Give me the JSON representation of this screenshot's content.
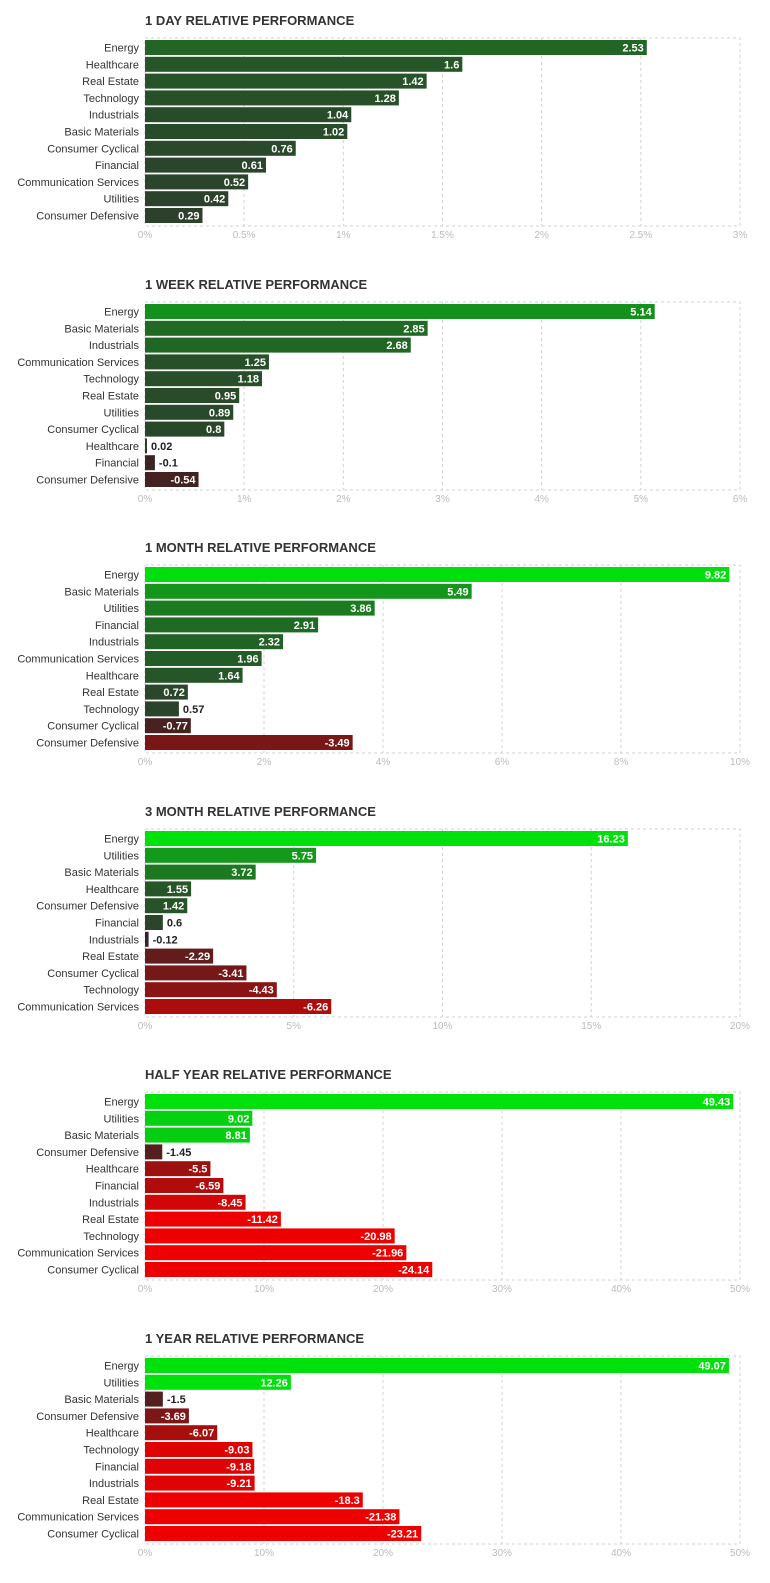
{
  "colors": {
    "title": "#333333",
    "category_label": "#333333",
    "tick_label": "#bbbbbb",
    "gridline": "#d0d0d0",
    "bar_value_text_inside": "#ffffff",
    "bar_value_text_outside": "#222222",
    "positive_bright": "#00e10c",
    "positive_dark": "#2d3b2d",
    "negative_dark": "#3a2424",
    "negative_bright": "#ee0000"
  },
  "chart_data": [
    {
      "type": "bar",
      "orientation": "horizontal",
      "title": "1 DAY RELATIVE PERFORMANCE",
      "categories": [
        "Energy",
        "Healthcare",
        "Real Estate",
        "Technology",
        "Industrials",
        "Basic Materials",
        "Consumer Cyclical",
        "Financial",
        "Communication Services",
        "Utilities",
        "Consumer Defensive"
      ],
      "values": [
        2.53,
        1.6,
        1.42,
        1.28,
        1.04,
        1.02,
        0.76,
        0.61,
        0.52,
        0.42,
        0.29
      ],
      "value_labels": [
        "2.53",
        "1.6",
        "1.42",
        "1.28",
        "1.04",
        "1.02",
        "0.76",
        "0.61",
        "0.52",
        "0.42",
        "0.29"
      ],
      "xlim": [
        0,
        3
      ],
      "ticks": [
        0,
        0.5,
        1,
        1.5,
        2,
        2.5,
        3
      ],
      "tick_labels": [
        "0%",
        "0.5%",
        "1%",
        "1.5%",
        "2%",
        "2.5%",
        "3%"
      ],
      "xlabel": "",
      "ylabel": "",
      "grid": true
    },
    {
      "type": "bar",
      "orientation": "horizontal",
      "title": "1 WEEK RELATIVE PERFORMANCE",
      "categories": [
        "Energy",
        "Basic Materials",
        "Industrials",
        "Communication Services",
        "Technology",
        "Real Estate",
        "Utilities",
        "Consumer Cyclical",
        "Healthcare",
        "Financial",
        "Consumer Defensive"
      ],
      "values": [
        5.14,
        2.85,
        2.68,
        1.25,
        1.18,
        0.95,
        0.89,
        0.8,
        0.02,
        -0.1,
        -0.54
      ],
      "value_labels": [
        "5.14",
        "2.85",
        "2.68",
        "1.25",
        "1.18",
        "0.95",
        "0.89",
        "0.8",
        "0.02",
        "-0.1",
        "-0.54"
      ],
      "xlim": [
        0,
        6
      ],
      "ticks": [
        0,
        1,
        2,
        3,
        4,
        5,
        6
      ],
      "tick_labels": [
        "0%",
        "1%",
        "2%",
        "3%",
        "4%",
        "5%",
        "6%"
      ],
      "xlabel": "",
      "ylabel": "",
      "grid": true
    },
    {
      "type": "bar",
      "orientation": "horizontal",
      "title": "1 MONTH RELATIVE PERFORMANCE",
      "categories": [
        "Energy",
        "Basic Materials",
        "Utilities",
        "Financial",
        "Industrials",
        "Communication Services",
        "Healthcare",
        "Real Estate",
        "Technology",
        "Consumer Cyclical",
        "Consumer Defensive"
      ],
      "values": [
        9.82,
        5.49,
        3.86,
        2.91,
        2.32,
        1.96,
        1.64,
        0.72,
        0.57,
        -0.77,
        -3.49
      ],
      "value_labels": [
        "9.82",
        "5.49",
        "3.86",
        "2.91",
        "2.32",
        "1.96",
        "1.64",
        "0.72",
        "0.57",
        "-0.77",
        "-3.49"
      ],
      "xlim": [
        0,
        10
      ],
      "ticks": [
        0,
        2,
        4,
        6,
        8,
        10
      ],
      "tick_labels": [
        "0%",
        "2%",
        "4%",
        "6%",
        "8%",
        "10%"
      ],
      "xlabel": "",
      "ylabel": "",
      "grid": true
    },
    {
      "type": "bar",
      "orientation": "horizontal",
      "title": "3 MONTH RELATIVE PERFORMANCE",
      "categories": [
        "Energy",
        "Utilities",
        "Basic Materials",
        "Healthcare",
        "Consumer Defensive",
        "Financial",
        "Industrials",
        "Real Estate",
        "Consumer Cyclical",
        "Technology",
        "Communication Services"
      ],
      "values": [
        16.23,
        5.75,
        3.72,
        1.55,
        1.42,
        0.6,
        -0.12,
        -2.29,
        -3.41,
        -4.43,
        -6.26
      ],
      "value_labels": [
        "16.23",
        "5.75",
        "3.72",
        "1.55",
        "1.42",
        "0.6",
        "-0.12",
        "-2.29",
        "-3.41",
        "-4.43",
        "-6.26"
      ],
      "xlim": [
        0,
        20
      ],
      "ticks": [
        0,
        5,
        10,
        15,
        20
      ],
      "tick_labels": [
        "0%",
        "5%",
        "10%",
        "15%",
        "20%"
      ],
      "xlabel": "",
      "ylabel": "",
      "grid": true
    },
    {
      "type": "bar",
      "orientation": "horizontal",
      "title": "HALF YEAR RELATIVE PERFORMANCE",
      "categories": [
        "Energy",
        "Utilities",
        "Basic Materials",
        "Consumer Defensive",
        "Healthcare",
        "Financial",
        "Industrials",
        "Real Estate",
        "Technology",
        "Communication Services",
        "Consumer Cyclical"
      ],
      "values": [
        49.43,
        9.02,
        8.81,
        -1.45,
        -5.5,
        -6.59,
        -8.45,
        -11.42,
        -20.98,
        -21.96,
        -24.14
      ],
      "value_labels": [
        "49.43",
        "9.02",
        "8.81",
        "-1.45",
        "-5.5",
        "-6.59",
        "-8.45",
        "-11.42",
        "-20.98",
        "-21.96",
        "-24.14"
      ],
      "xlim": [
        0,
        50
      ],
      "ticks": [
        0,
        10,
        20,
        30,
        40,
        50
      ],
      "tick_labels": [
        "0%",
        "10%",
        "20%",
        "30%",
        "40%",
        "50%"
      ],
      "xlabel": "",
      "ylabel": "",
      "grid": true
    },
    {
      "type": "bar",
      "orientation": "horizontal",
      "title": "1 YEAR RELATIVE PERFORMANCE",
      "categories": [
        "Energy",
        "Utilities",
        "Basic Materials",
        "Consumer Defensive",
        "Healthcare",
        "Technology",
        "Financial",
        "Industrials",
        "Real Estate",
        "Communication Services",
        "Consumer Cyclical"
      ],
      "values": [
        49.07,
        12.26,
        -1.5,
        -3.69,
        -6.07,
        -9.03,
        -9.18,
        -9.21,
        -18.3,
        -21.38,
        -23.21
      ],
      "value_labels": [
        "49.07",
        "12.26",
        "-1.5",
        "-3.69",
        "-6.07",
        "-9.03",
        "-9.18",
        "-9.21",
        "-18.3",
        "-21.38",
        "-23.21"
      ],
      "xlim": [
        0,
        50
      ],
      "ticks": [
        0,
        10,
        20,
        30,
        40,
        50
      ],
      "tick_labels": [
        "0%",
        "10%",
        "20%",
        "30%",
        "40%",
        "50%"
      ],
      "xlabel": "",
      "ylabel": "",
      "grid": true
    }
  ]
}
